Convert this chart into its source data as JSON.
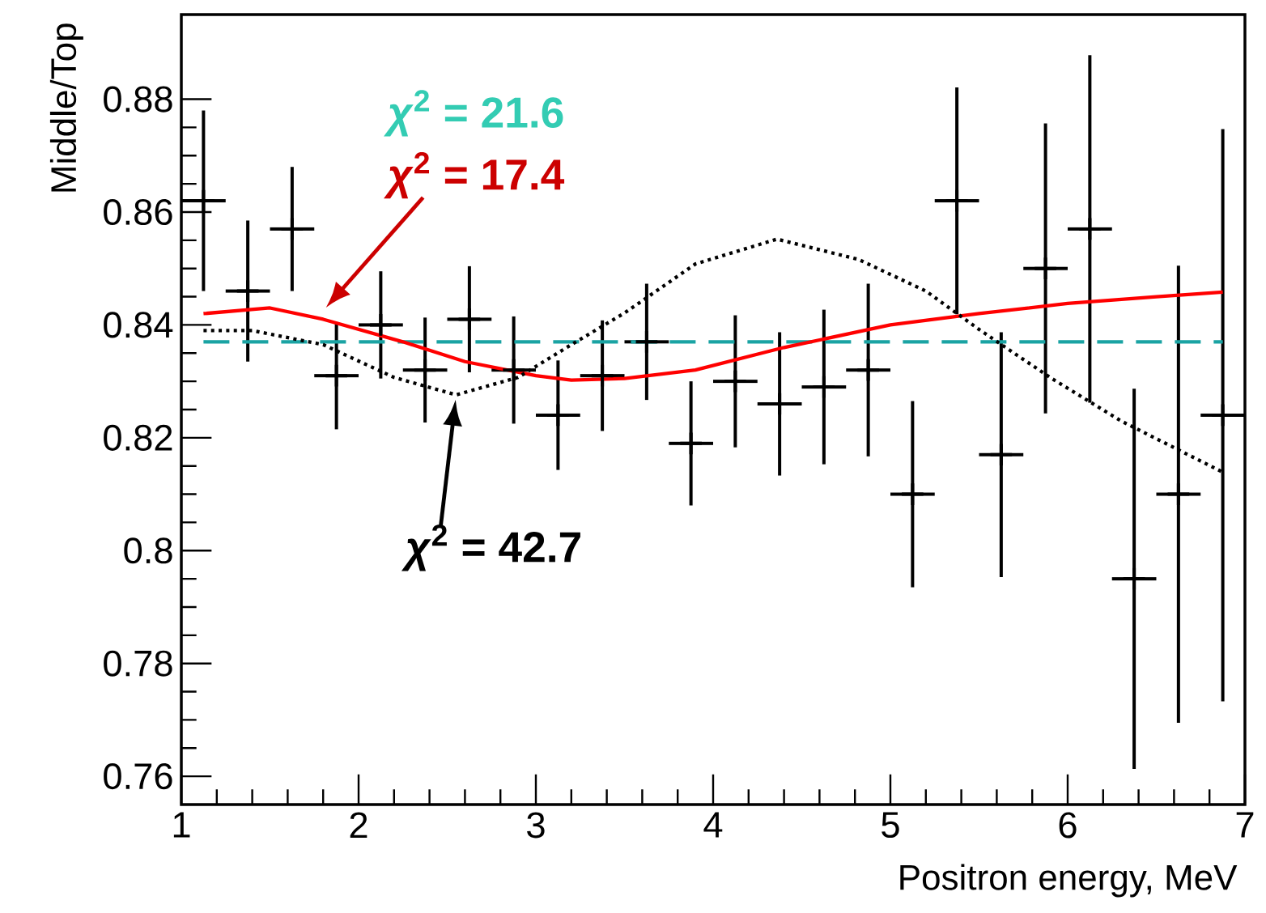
{
  "chart_data": {
    "type": "scatter",
    "xlabel": "Positron energy, MeV",
    "ylabel": "Middle/Top",
    "xlim": [
      1,
      7
    ],
    "ylim": [
      0.755,
      0.895
    ],
    "xticks": [
      1,
      2,
      3,
      4,
      5,
      6,
      7
    ],
    "yticks": [
      0.76,
      0.78,
      0.8,
      0.82,
      0.84,
      0.86,
      0.88
    ],
    "grid": false,
    "series": [
      {
        "color": "#000000",
        "marker": "cross",
        "x": [
          1.125,
          1.375,
          1.625,
          1.875,
          2.125,
          2.375,
          2.625,
          2.875,
          3.125,
          3.375,
          3.625,
          3.875,
          4.125,
          4.375,
          4.625,
          4.875,
          5.125,
          5.375,
          5.625,
          5.875,
          6.125,
          6.375,
          6.625,
          6.875
        ],
        "values": [
          0.862,
          0.846,
          0.857,
          0.831,
          0.84,
          0.832,
          0.841,
          0.832,
          0.824,
          0.831,
          0.837,
          0.819,
          0.83,
          0.826,
          0.829,
          0.832,
          0.81,
          0.862,
          0.817,
          0.85,
          0.857,
          0.795,
          0.81,
          0.824
        ],
        "errors": [
          0.016,
          0.0125,
          0.011,
          0.0095,
          0.0095,
          0.0093,
          0.0094,
          0.0095,
          0.0097,
          0.0098,
          0.0103,
          0.011,
          0.0117,
          0.0127,
          0.0137,
          0.0153,
          0.0165,
          0.0201,
          0.0217,
          0.0257,
          0.0308,
          0.0337,
          0.0405,
          0.0507
        ],
        "xerrors": [
          0.125,
          0.125,
          0.125,
          0.125,
          0.125,
          0.125,
          0.125,
          0.125,
          0.125,
          0.125,
          0.125,
          0.125,
          0.125,
          0.125,
          0.125,
          0.125,
          0.125,
          0.125,
          0.125,
          0.125,
          0.125,
          0.125,
          0.125,
          0.125
        ]
      },
      {
        "type": "line",
        "color": "#1aa3a3",
        "line_style": "dashed",
        "x": [
          1.125,
          6.875
        ],
        "values": [
          0.837,
          0.837
        ]
      },
      {
        "type": "line",
        "color": "#ff0000",
        "line_style": "solid",
        "x": [
          1.125,
          1.5,
          1.8,
          2.25,
          2.6,
          3.0,
          3.2,
          3.5,
          3.9,
          4.4,
          5.0,
          5.5,
          6.0,
          6.5,
          6.875
        ],
        "values": [
          0.842,
          0.843,
          0.841,
          0.837,
          0.8335,
          0.831,
          0.8302,
          0.8305,
          0.832,
          0.836,
          0.84,
          0.842,
          0.8438,
          0.845,
          0.8458
        ]
      },
      {
        "type": "line",
        "color": "#000000",
        "line_style": "dotted",
        "x": [
          1.125,
          1.4,
          1.8,
          2.2,
          2.55,
          2.9,
          3.2,
          3.5,
          3.9,
          4.36,
          4.82,
          5.2,
          5.5,
          5.9,
          6.3,
          6.875
        ],
        "values": [
          0.839,
          0.839,
          0.8365,
          0.8307,
          0.8276,
          0.8307,
          0.8365,
          0.8421,
          0.8508,
          0.8552,
          0.8516,
          0.846,
          0.8392,
          0.8307,
          0.823,
          0.8139
        ]
      }
    ],
    "annotations": [
      "*χ*$^{2}$ = 21.6",
      {
        "text": "*χ*$^{2}$ = 17.4",
        "x": 1.8,
        "y": 0.8425
      },
      {
        "text": "*χ*$^{2}$ = 42.7",
        "x": 2.55,
        "y": 0.8275
      }
    ]
  }
}
